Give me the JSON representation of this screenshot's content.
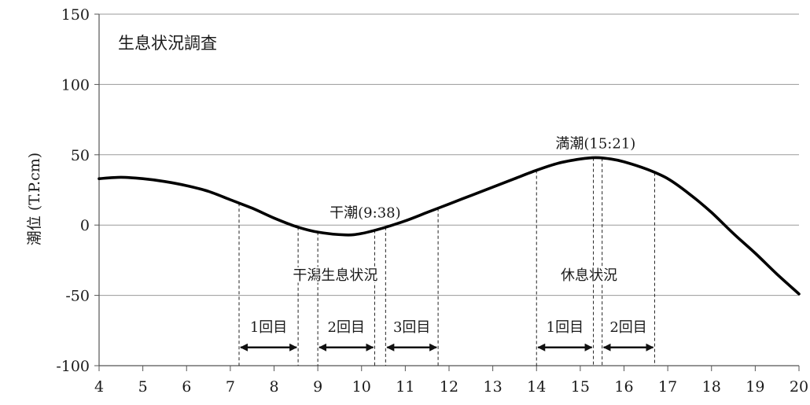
{
  "chart_data": {
    "type": "line",
    "title": "生息状況調査",
    "ylabel": "潮位 (T.P.cm)",
    "xlabel": "",
    "xlim": [
      4,
      20
    ],
    "ylim": [
      -100,
      150
    ],
    "xticks": [
      4,
      5,
      6,
      7,
      8,
      9,
      10,
      11,
      12,
      13,
      14,
      15,
      16,
      17,
      18,
      19,
      20
    ],
    "yticks": [
      150,
      100,
      50,
      0,
      -50,
      -100
    ],
    "grid": "horizontal",
    "series": [
      {
        "points": [
          [
            4.0,
            33
          ],
          [
            4.5,
            34
          ],
          [
            5.0,
            33
          ],
          [
            5.5,
            31
          ],
          [
            6.0,
            28
          ],
          [
            6.5,
            24
          ],
          [
            7.0,
            18
          ],
          [
            7.5,
            12
          ],
          [
            8.0,
            5
          ],
          [
            8.5,
            -1
          ],
          [
            9.0,
            -5
          ],
          [
            9.63,
            -7
          ],
          [
            10.0,
            -6
          ],
          [
            10.5,
            -2
          ],
          [
            11.0,
            3
          ],
          [
            11.5,
            9
          ],
          [
            12.0,
            15
          ],
          [
            12.5,
            21
          ],
          [
            13.0,
            27
          ],
          [
            13.5,
            33
          ],
          [
            14.0,
            39
          ],
          [
            14.5,
            44
          ],
          [
            15.0,
            47
          ],
          [
            15.35,
            48
          ],
          [
            15.7,
            47
          ],
          [
            16.0,
            45
          ],
          [
            16.5,
            40
          ],
          [
            17.0,
            33
          ],
          [
            17.5,
            22
          ],
          [
            18.0,
            9
          ],
          [
            18.5,
            -6
          ],
          [
            19.0,
            -20
          ],
          [
            19.5,
            -35
          ],
          [
            20.0,
            -49
          ]
        ]
      }
    ],
    "annotations": [
      {
        "id": "low",
        "text": "干潮(9:38)",
        "x": 9.63,
        "y": -7
      },
      {
        "id": "high",
        "text": "満潮(15:21)",
        "x": 15.35,
        "y": 48
      }
    ],
    "survey_groups": [
      {
        "label": "干潟生息状況",
        "x": 9.4,
        "y": -35
      },
      {
        "label": "休息状況",
        "x": 15.2,
        "y": -35
      }
    ],
    "vlines": [
      7.2,
      8.55,
      9.0,
      10.3,
      10.55,
      11.75,
      14.0,
      15.3,
      15.5,
      16.7
    ],
    "intervals": [
      {
        "label": "1回目",
        "x0": 7.2,
        "x1": 8.55
      },
      {
        "label": "2回目",
        "x0": 9.0,
        "x1": 10.3
      },
      {
        "label": "3回目",
        "x0": 10.55,
        "x1": 11.75
      },
      {
        "label": "1回目",
        "x0": 14.0,
        "x1": 15.3
      },
      {
        "label": "2回目",
        "x0": 15.5,
        "x1": 16.7
      }
    ],
    "interval_label_y": -72,
    "interval_arrow_y": -87
  }
}
